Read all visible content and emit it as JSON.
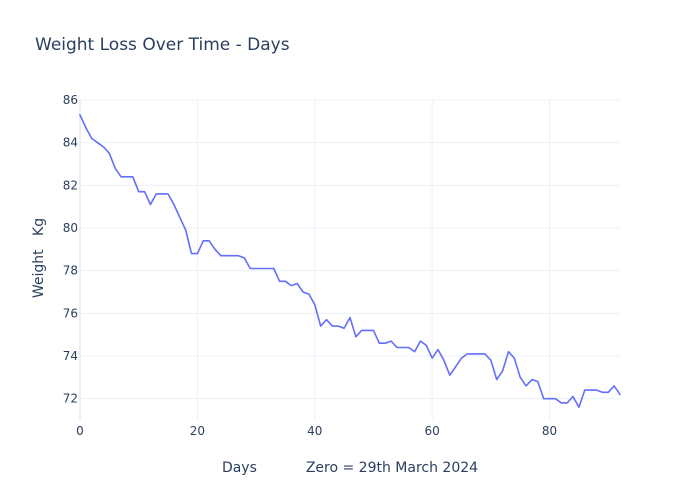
{
  "chart_data": {
    "type": "line",
    "title": "Weight Loss Over Time - Days",
    "xlabel": "Days           Zero = 29th March 2024",
    "ylabel": "Weight   Kg",
    "xlim": [
      0,
      92
    ],
    "ylim": [
      71,
      86
    ],
    "x_ticks": [
      0,
      20,
      40,
      60,
      80
    ],
    "y_ticks": [
      72,
      74,
      76,
      78,
      80,
      82,
      84,
      86
    ],
    "grid": true,
    "line_color": "#636efa",
    "series": [
      {
        "x": [
          0,
          1,
          2,
          3,
          4,
          5,
          6,
          7,
          8,
          9,
          10,
          11,
          12,
          13,
          14,
          15,
          16,
          17,
          18,
          19,
          20,
          21,
          22,
          23,
          24,
          25,
          26,
          27,
          28,
          29,
          30,
          31,
          32,
          33,
          34,
          35,
          36,
          37,
          38,
          39,
          40,
          41,
          42,
          43,
          44,
          45,
          46,
          47,
          48,
          49,
          50,
          51,
          52,
          53,
          54,
          55,
          56,
          57,
          58,
          59,
          60,
          61,
          62,
          63,
          64,
          65,
          66,
          67,
          68,
          69,
          70,
          71,
          72,
          73,
          74,
          75,
          76,
          77,
          78,
          79,
          80,
          81,
          82,
          83,
          84,
          85,
          86,
          87,
          88,
          89,
          90,
          91,
          92
        ],
        "y": [
          85.3,
          84.7,
          84.2,
          84.0,
          83.8,
          83.5,
          82.8,
          82.4,
          82.4,
          82.4,
          81.7,
          81.7,
          81.1,
          81.6,
          81.6,
          81.6,
          81.1,
          80.5,
          79.9,
          78.8,
          78.8,
          79.4,
          79.4,
          79.0,
          78.7,
          78.7,
          78.7,
          78.7,
          78.6,
          78.1,
          78.1,
          78.1,
          78.1,
          78.1,
          77.5,
          77.5,
          77.3,
          77.4,
          77.0,
          76.9,
          76.4,
          75.4,
          75.7,
          75.4,
          75.4,
          75.3,
          75.8,
          74.9,
          75.2,
          75.2,
          75.2,
          74.6,
          74.6,
          74.7,
          74.4,
          74.4,
          74.4,
          74.2,
          74.7,
          74.5,
          73.9,
          74.3,
          73.8,
          73.1,
          73.5,
          73.9,
          74.1,
          74.1,
          74.1,
          74.1,
          73.8,
          72.9,
          73.3,
          74.2,
          73.9,
          73.0,
          72.6,
          72.9,
          72.8,
          72.0,
          72.0,
          72.0,
          71.8,
          71.8,
          72.1,
          71.6,
          72.4,
          72.4,
          72.4,
          72.3,
          72.3,
          72.6,
          72.2
        ]
      }
    ]
  }
}
